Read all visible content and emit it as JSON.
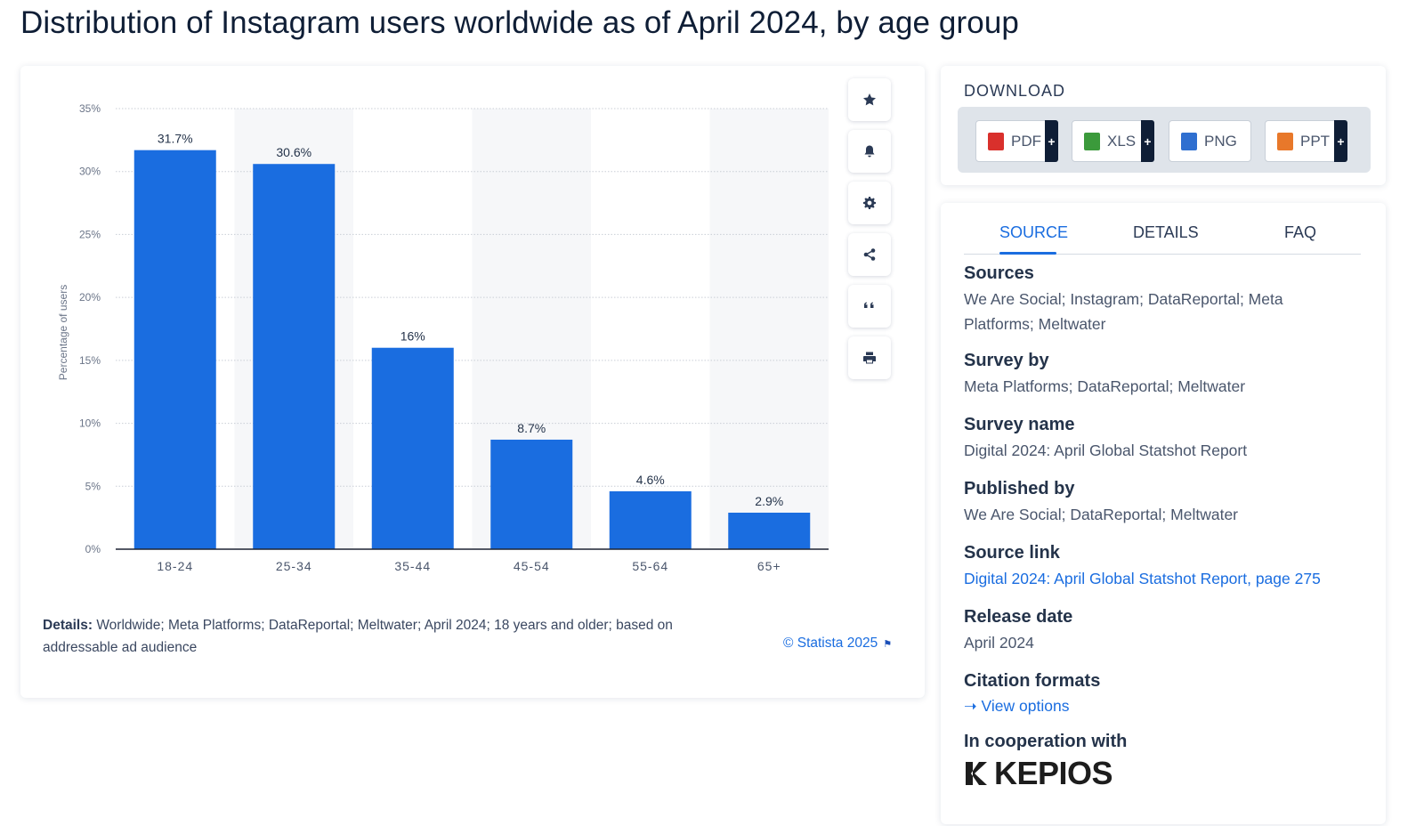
{
  "page_title": "Distribution of Instagram users worldwide as of April 2024, by age group",
  "chart_data": {
    "type": "bar",
    "categories": [
      "18-24",
      "25-34",
      "35-44",
      "45-54",
      "55-64",
      "65+"
    ],
    "values": [
      31.7,
      30.6,
      16,
      8.7,
      4.6,
      2.9
    ],
    "value_labels": [
      "31.7%",
      "30.6%",
      "16%",
      "8.7%",
      "4.6%",
      "2.9%"
    ],
    "ylabel": "Percentage of users",
    "yticks": [
      "0%",
      "5%",
      "10%",
      "15%",
      "20%",
      "25%",
      "30%",
      "35%"
    ],
    "ylim": [
      0,
      35
    ],
    "grid": true,
    "bar_color": "#1a6de0"
  },
  "toolbar": {
    "icons": [
      "star-icon",
      "bell-icon",
      "gear-icon",
      "share-icon",
      "quote-icon",
      "print-icon"
    ]
  },
  "details": {
    "label": "Details:",
    "text": "Worldwide; Meta Platforms; DataReportal; Meltwater; April 2024; 18 years and older; based on addressable ad audience"
  },
  "copyright": "© Statista 2025",
  "download": {
    "title": "DOWNLOAD",
    "buttons": [
      {
        "label": "PDF",
        "plus": "+",
        "icon": "pdf-file-icon",
        "color": "#d9302c"
      },
      {
        "label": "XLS",
        "plus": "+",
        "icon": "xls-file-icon",
        "color": "#3b9a3b"
      },
      {
        "label": "PNG",
        "plus": "",
        "icon": "png-file-icon",
        "color": "#2f6fd0"
      },
      {
        "label": "PPT",
        "plus": "+",
        "icon": "ppt-file-icon",
        "color": "#e8782a"
      }
    ]
  },
  "info": {
    "tabs": [
      "SOURCE",
      "DETAILS",
      "FAQ"
    ],
    "sources_head": "Sources",
    "sources_val": "We Are Social; Instagram; DataReportal; Meta Platforms; Meltwater",
    "survey_by_head": "Survey by",
    "survey_by_val": "Meta Platforms; DataReportal; Meltwater",
    "survey_name_head": "Survey name",
    "survey_name_val": "Digital 2024: April Global Statshot Report",
    "published_by_head": "Published by",
    "published_by_val": "We Are Social; DataReportal; Meltwater",
    "source_link_head": "Source link",
    "source_link_val": "Digital 2024: April Global Statshot Report, page 275",
    "release_date_head": "Release date",
    "release_date_val": "April 2024",
    "citation_head": "Citation formats",
    "citation_link": "View options",
    "cooperation_head": "In cooperation with",
    "cooperation_logo": "KEPIOS"
  }
}
